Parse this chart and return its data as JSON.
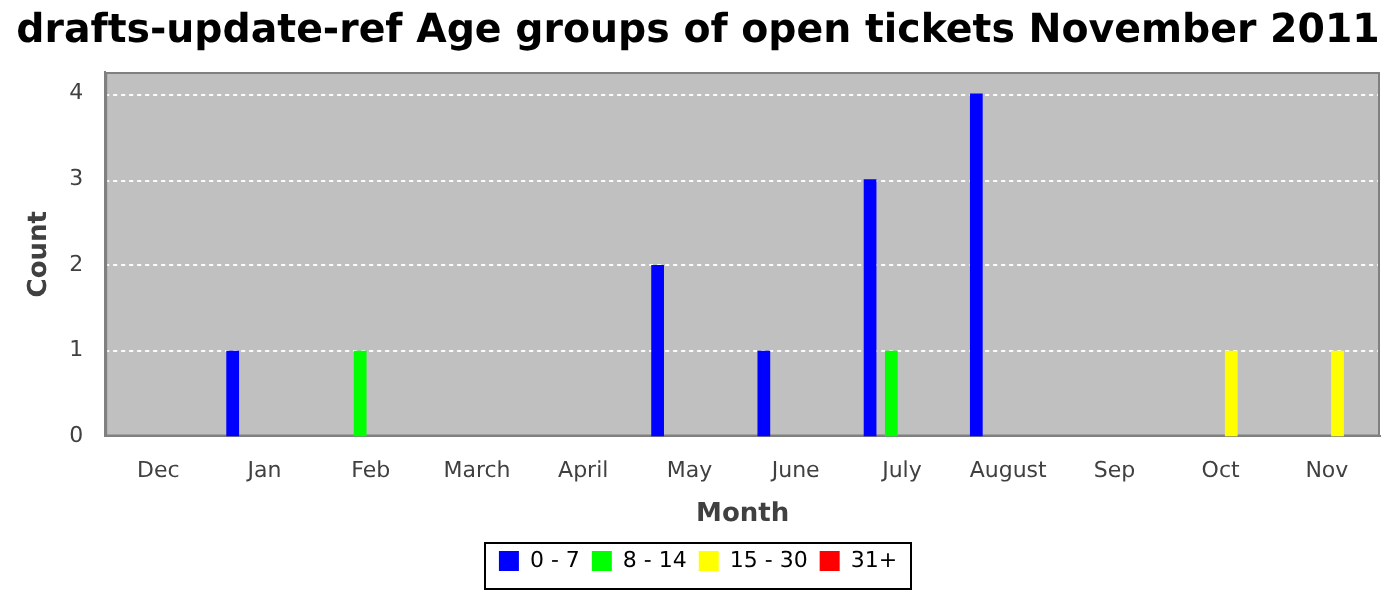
{
  "chart_data": {
    "type": "bar",
    "title": "drafts-update-ref Age groups of open tickets November 2011",
    "xlabel": "Month",
    "ylabel": "Count",
    "categories": [
      "Dec",
      "Jan",
      "Feb",
      "March",
      "April",
      "May",
      "June",
      "July",
      "August",
      "Sep",
      "Oct",
      "Nov"
    ],
    "series": [
      {
        "name": "0 - 7",
        "color": "#0000ff",
        "values": [
          0,
          1,
          0,
          0,
          0,
          2,
          1,
          3,
          4,
          0,
          0,
          0
        ]
      },
      {
        "name": "8 - 14",
        "color": "#00ff00",
        "values": [
          0,
          0,
          1,
          0,
          0,
          0,
          0,
          1,
          0,
          0,
          0,
          0
        ]
      },
      {
        "name": "15 - 30",
        "color": "#ffff00",
        "values": [
          0,
          0,
          0,
          0,
          0,
          0,
          0,
          0,
          0,
          0,
          1,
          1
        ]
      },
      {
        "name": "31+",
        "color": "#ff0000",
        "values": [
          0,
          0,
          0,
          0,
          0,
          0,
          0,
          0,
          0,
          0,
          0,
          0
        ]
      }
    ],
    "ylim": [
      0,
      4.25
    ],
    "yticks": [
      0,
      1,
      2,
      3,
      4
    ],
    "grid": "y",
    "legend": "bottom"
  }
}
